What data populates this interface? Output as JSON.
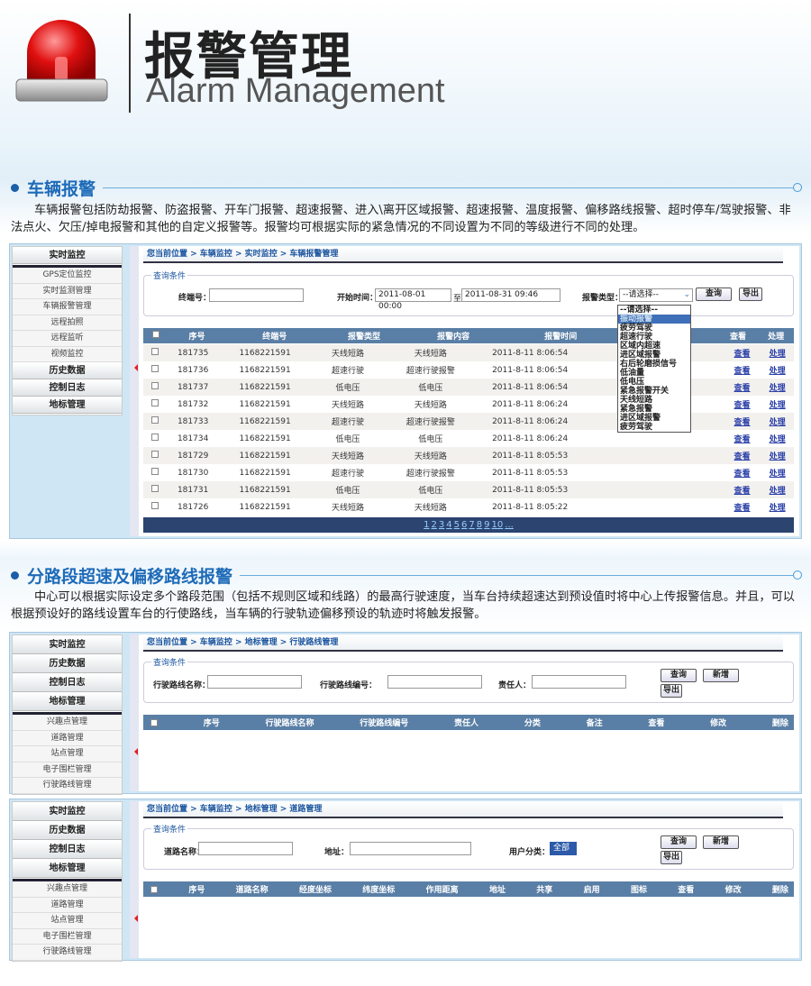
{
  "header": {
    "title_cn": "报警管理",
    "title_en": "Alarm Management",
    "icon": "siren-icon"
  },
  "section1": {
    "heading": "车辆报警",
    "text": "车辆报警包括防劫报警、防盗报警、开车门报警、超速报警、进入\\离开区域报警、超速报警、温度报警、偏移路线报警、超时停车/驾驶报警、非法点火、欠压/掉电报警和其他的自定义报警等。报警均可根据实际的紧急情况的不同设置为不同的等级进行不同的处理。"
  },
  "section2": {
    "heading": "分路段超速及偏移路线报警",
    "text": "中心可以根据实际设定多个路段范围（包括不规则区域和线路）的最高行驶速度，当车台持续超速达到预设值时将中心上传报警信息。并且，可以根据预设好的路线设置车台的行使路线，当车辆的行驶轨迹偏移预设的轨迹时将触发报警。"
  },
  "shot1": {
    "sidebar": {
      "top": "实时监控",
      "subs": [
        "GPS定位监控",
        "实时监测管理",
        "车辆报警管理",
        "远程拍照",
        "远程监听",
        "视频监控"
      ],
      "bottom": [
        "历史数据",
        "控制日志",
        "地标管理"
      ]
    },
    "breadcrumb": "您当前位置 > 车辆监控 > 实时监控 > 车辆报警管理",
    "legend": "查询条件",
    "terminal_label": "终端号：",
    "terminal_value": "",
    "start_label": "开始时间：",
    "start_value": "2011-08-01 00:00",
    "to_label": "至",
    "end_value": "2011-08-31 09:46",
    "type_label": "报警类型：",
    "type_value": "--请选择--",
    "query": "查询",
    "export": "导出",
    "dropdown": [
      "--请选择--",
      "振动报警",
      "疲劳驾驶",
      "超速行驶",
      "区域内超速",
      "进区域报警",
      "右后轮磨损信号",
      "低油量",
      "低电压",
      "紧急报警开关",
      "天线短路",
      "紧急报警",
      "进区域报警",
      "疲劳驾驶"
    ],
    "dropdown_selected": 1,
    "columns": [
      "序号",
      "终端号",
      "报警类型",
      "报警内容",
      "报警时间",
      "查看",
      "处理"
    ],
    "rows": [
      [
        "181735",
        "1168221591",
        "天线短路",
        "天线短路",
        "2011-8-11 8:06:54"
      ],
      [
        "181736",
        "1168221591",
        "超速行驶",
        "超速行驶报警",
        "2011-8-11 8:06:54"
      ],
      [
        "181737",
        "1168221591",
        "低电压",
        "低电压",
        "2011-8-11 8:06:54"
      ],
      [
        "181732",
        "1168221591",
        "天线短路",
        "天线短路",
        "2011-8-11 8:06:24"
      ],
      [
        "181733",
        "1168221591",
        "超速行驶",
        "超速行驶报警",
        "2011-8-11 8:06:24"
      ],
      [
        "181734",
        "1168221591",
        "低电压",
        "低电压",
        "2011-8-11 8:06:24"
      ],
      [
        "181729",
        "1168221591",
        "天线短路",
        "天线短路",
        "2011-8-11 8:05:53"
      ],
      [
        "181730",
        "1168221591",
        "超速行驶",
        "超速行驶报警",
        "2011-8-11 8:05:53"
      ],
      [
        "181731",
        "1168221591",
        "低电压",
        "低电压",
        "2011-8-11 8:05:53"
      ],
      [
        "181726",
        "1168221591",
        "天线短路",
        "天线短路",
        "2011-8-11 8:05:22"
      ]
    ],
    "view": "查看",
    "handle": "处理",
    "pages": [
      "1",
      "2",
      "3",
      "4",
      "5",
      "6",
      "7",
      "8",
      "9",
      "10",
      "..."
    ]
  },
  "shot2": {
    "sidebar": {
      "top": [
        "实时监控",
        "历史数据",
        "控制日志",
        "地标管理"
      ],
      "subs": [
        "兴趣点管理",
        "道路管理",
        "站点管理",
        "电子围栏管理",
        "行驶路线管理"
      ]
    },
    "breadcrumb": "您当前位置 > 车辆监控 > 地标管理 > 行驶路线管理",
    "legend": "查询条件",
    "f1": "行驶路线名称：",
    "f2": "行驶路线编号：",
    "f3": "责任人：",
    "query": "查询",
    "add": "新增",
    "export": "导出",
    "columns": [
      "序号",
      "行驶路线名称",
      "行驶路线编号",
      "责任人",
      "分类",
      "备注",
      "查看",
      "修改",
      "删除"
    ]
  },
  "shot3": {
    "sidebar": {
      "top": [
        "实时监控",
        "历史数据",
        "控制日志",
        "地标管理"
      ],
      "subs": [
        "兴趣点管理",
        "道路管理",
        "站点管理",
        "电子围栏管理",
        "行驶路线管理"
      ]
    },
    "breadcrumb": "您当前位置 > 车辆监控 > 地标管理 > 道路管理",
    "legend": "查询条件",
    "f1": "道路名称：",
    "f2": "地址：",
    "f3": "用户分类：",
    "f3_value": "全部",
    "query": "查询",
    "add": "新增",
    "export": "导出",
    "columns": [
      "序号",
      "道路名称",
      "经度坐标",
      "纬度坐标",
      "作用距离",
      "地址",
      "共享",
      "启用",
      "图标",
      "查看",
      "修改",
      "删除"
    ]
  },
  "colors": {
    "accent": "#1e6bb8",
    "table_header": "#5a7fa6",
    "pager": "#2b4470"
  }
}
